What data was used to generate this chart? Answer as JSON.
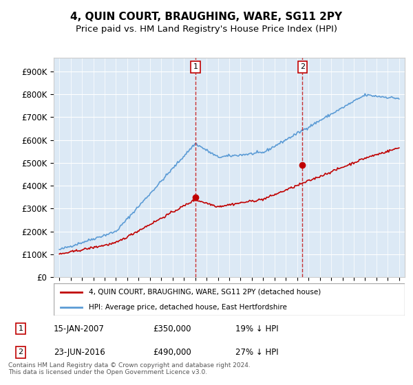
{
  "title": "4, QUIN COURT, BRAUGHING, WARE, SG11 2PY",
  "subtitle": "Price paid vs. HM Land Registry's House Price Index (HPI)",
  "ylabel": "",
  "xlabel": "",
  "ylim": [
    0,
    950000
  ],
  "yticks": [
    0,
    100000,
    200000,
    300000,
    400000,
    500000,
    600000,
    700000,
    800000,
    900000
  ],
  "ytick_labels": [
    "£0",
    "£100K",
    "£200K",
    "£300K",
    "£400K",
    "£500K",
    "£600K",
    "£700K",
    "£800K",
    "£900K"
  ],
  "background_color": "#dce9f5",
  "plot_bg_color": "#dce9f5",
  "outer_bg": "#ffffff",
  "hpi_color": "#5b9bd5",
  "price_color": "#c00000",
  "marker1_date_idx": 0,
  "marker2_date_idx": 1,
  "sale1": {
    "date": "15-JAN-2007",
    "price": 350000,
    "pct": "19%",
    "dir": "↓"
  },
  "sale2": {
    "date": "23-JUN-2016",
    "price": 490000,
    "pct": "27%",
    "dir": "↓"
  },
  "legend_label_price": "4, QUIN COURT, BRAUGHING, WARE, SG11 2PY (detached house)",
  "legend_label_hpi": "HPI: Average price, detached house, East Hertfordshire",
  "footnote": "Contains HM Land Registry data © Crown copyright and database right 2024.\nThis data is licensed under the Open Government Licence v3.0.",
  "title_fontsize": 11,
  "subtitle_fontsize": 9.5
}
